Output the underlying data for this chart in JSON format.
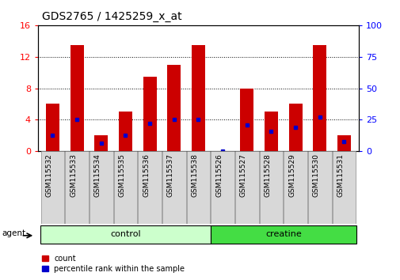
{
  "title": "GDS2765 / 1425259_x_at",
  "samples": [
    "GSM115532",
    "GSM115533",
    "GSM115534",
    "GSM115535",
    "GSM115536",
    "GSM115537",
    "GSM115538",
    "GSM115526",
    "GSM115527",
    "GSM115528",
    "GSM115529",
    "GSM115530",
    "GSM115531"
  ],
  "count_values": [
    6.0,
    13.5,
    2.0,
    5.0,
    9.5,
    11.0,
    13.5,
    0.0,
    8.0,
    5.0,
    6.0,
    13.5,
    2.0
  ],
  "percentile_values": [
    2.0,
    4.0,
    1.0,
    2.0,
    3.5,
    4.0,
    4.0,
    0.0,
    3.3,
    2.5,
    3.0,
    4.3,
    1.2
  ],
  "groups": [
    {
      "label": "control",
      "start": 0,
      "end": 7,
      "color": "#ccffcc"
    },
    {
      "label": "creatine",
      "start": 7,
      "end": 13,
      "color": "#44dd44"
    }
  ],
  "ylim_left": [
    0,
    16
  ],
  "ylim_right": [
    0,
    100
  ],
  "yticks_left": [
    0,
    4,
    8,
    12,
    16
  ],
  "yticks_right": [
    0,
    25,
    50,
    75,
    100
  ],
  "bar_color": "#cc0000",
  "percentile_color": "#0000cc",
  "grid_color": "black",
  "agent_label": "agent",
  "legend_count": "count",
  "legend_percentile": "percentile rank within the sample",
  "bar_width": 0.55,
  "title_fontsize": 10,
  "tick_label_fontsize": 6.5,
  "group_label_fontsize": 8,
  "legend_fontsize": 7
}
